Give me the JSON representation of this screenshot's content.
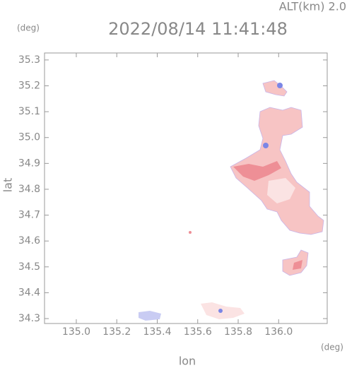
{
  "chart_data": {
    "type": "field",
    "title": "2022/08/14 11:41:48",
    "subtitle": "ALT(km) 2.0",
    "x_label": "lon",
    "y_label": "lat",
    "x_unit": "(deg)",
    "y_unit": "(deg)",
    "xlim": [
      134.843,
      136.24
    ],
    "ylim": [
      34.281,
      35.327
    ],
    "xticks": [
      {
        "value": 135,
        "label": "135.0"
      },
      135.2,
      135.4,
      135.6,
      135.8,
      {
        "value": 136,
        "label": "136.0"
      }
    ],
    "yticks": [
      34.3,
      34.4,
      34.5,
      34.6,
      34.7,
      34.8,
      34.9,
      {
        "value": 35,
        "label": "35.0"
      },
      35.1,
      35.2,
      35.3
    ]
  }
}
